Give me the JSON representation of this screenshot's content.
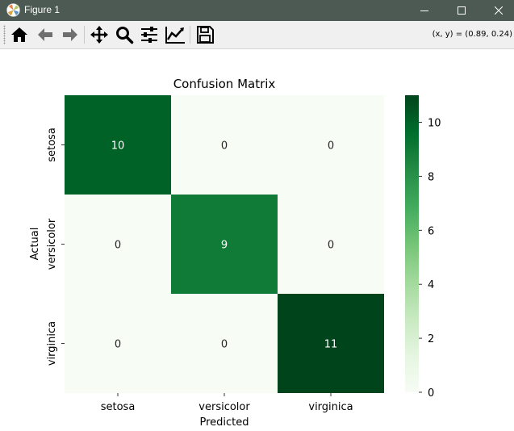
{
  "window": {
    "title": "Figure 1",
    "app_icon": "matplotlib-icon",
    "controls": [
      "minimize-icon",
      "maximize-icon",
      "close-icon"
    ]
  },
  "toolbar": {
    "tools": [
      {
        "name": "home",
        "icon": "home-icon"
      },
      {
        "name": "back",
        "icon": "arrow-left-icon"
      },
      {
        "name": "forward",
        "icon": "arrow-right-icon"
      },
      {
        "name": "pan",
        "icon": "move-icon"
      },
      {
        "name": "zoom",
        "icon": "magnifier-icon"
      },
      {
        "name": "configure-subplots",
        "icon": "sliders-icon"
      },
      {
        "name": "edit-axes",
        "icon": "line-chart-icon"
      },
      {
        "name": "save",
        "icon": "floppy-disk-icon"
      }
    ],
    "coordinates": "(x, y) = (0.89, 0.24)"
  },
  "chart_data": {
    "type": "heatmap",
    "title": "Confusion Matrix",
    "xlabel": "Predicted",
    "ylabel": "Actual",
    "x_categories": [
      "setosa",
      "versicolor",
      "virginica"
    ],
    "y_categories": [
      "setosa",
      "versicolor",
      "virginica"
    ],
    "values": [
      [
        10,
        0,
        0
      ],
      [
        0,
        9,
        0
      ],
      [
        0,
        0,
        11
      ]
    ],
    "colormap": "Greens",
    "colorbar": {
      "min": 0,
      "max": 11,
      "ticks": [
        0,
        2,
        4,
        6,
        8,
        10
      ]
    },
    "annotations": true,
    "grid": false
  }
}
